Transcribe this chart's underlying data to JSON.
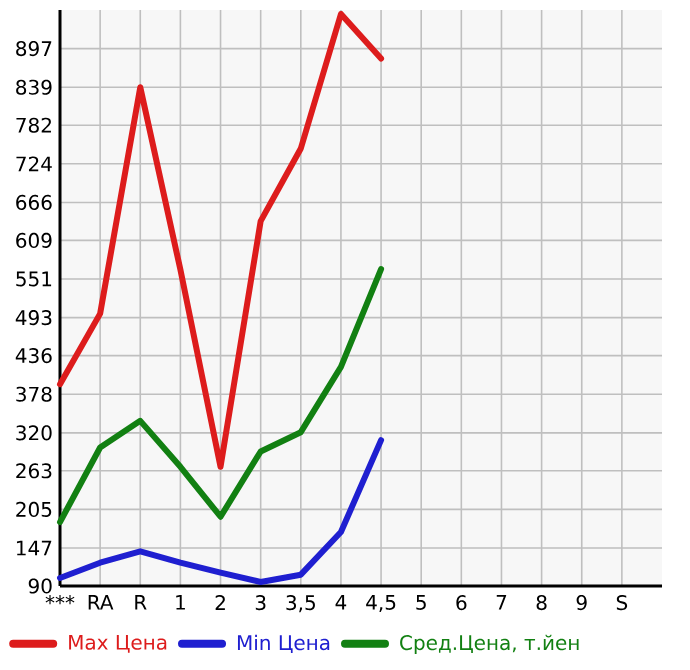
{
  "chart_data": {
    "type": "line",
    "categories": [
      "***",
      "RA",
      "R",
      "1",
      "2",
      "3",
      "3,5",
      "4",
      "4,5",
      "5",
      "6",
      "7",
      "8",
      "9",
      "S"
    ],
    "series": [
      {
        "name": "Max Цена",
        "color": "#dd1c1c",
        "values": [
          393,
          499,
          839,
          565,
          269,
          638,
          747,
          949,
          882,
          null,
          null,
          null,
          null,
          null,
          null
        ]
      },
      {
        "name": "Min Цена",
        "color": "#1f1fd0",
        "values": [
          102,
          125,
          142,
          125,
          110,
          96,
          107,
          171,
          309,
          null,
          null,
          null,
          null,
          null,
          null
        ]
      },
      {
        "name": "Сред.Цена, т.йен",
        "color": "#128012",
        "values": [
          186,
          298,
          338,
          269,
          194,
          292,
          321,
          419,
          566,
          null,
          null,
          null,
          null,
          null,
          null
        ]
      }
    ],
    "ylim": [
      90,
      955
    ],
    "yticks": [
      90,
      147,
      205,
      263,
      320,
      378,
      436,
      493,
      551,
      609,
      666,
      724,
      782,
      839,
      897
    ],
    "grid": true,
    "legend": "bottom"
  }
}
